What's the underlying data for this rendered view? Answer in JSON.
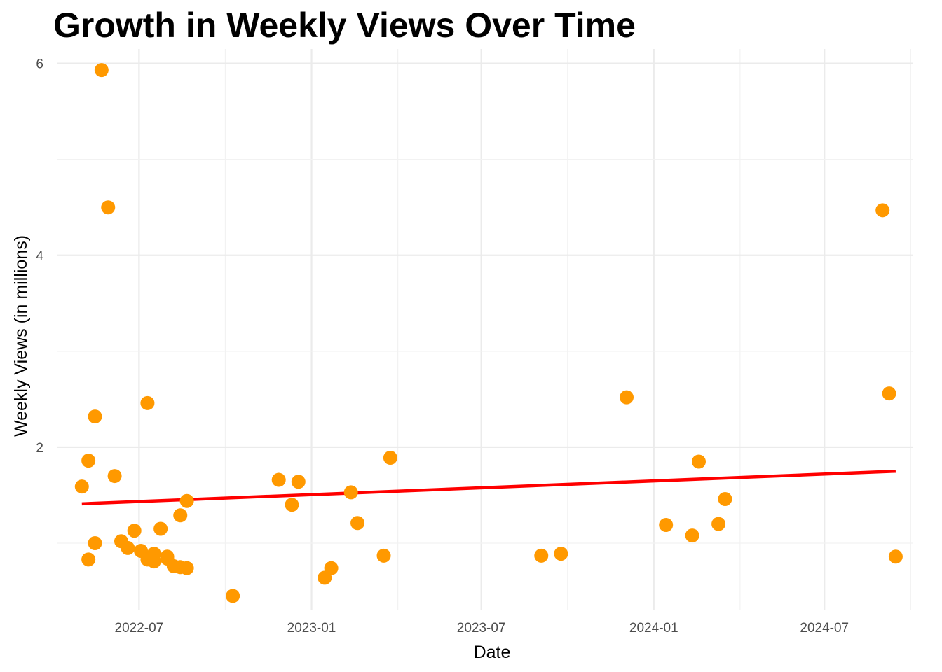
{
  "chart_data": {
    "type": "scatter",
    "title": "Growth in Weekly Views Over Time",
    "xlabel": "Date",
    "ylabel": "Weekly Views (in millions)",
    "x_ticks": [
      "2022-07",
      "2023-01",
      "2023-07",
      "2024-01",
      "2024-07"
    ],
    "y_ticks": [
      "2",
      "4",
      "6"
    ],
    "xlim": [
      "2022-04-05",
      "2024-10-03"
    ],
    "ylim": [
      0.3,
      6.15
    ],
    "grid": true,
    "colors": {
      "points": "#ff9900",
      "trend": "#ff0000"
    },
    "series": [
      {
        "type": "scatter",
        "x": [
          "2022-05-01",
          "2022-05-08",
          "2022-05-08",
          "2022-05-15",
          "2022-05-15",
          "2022-05-22",
          "2022-05-29",
          "2022-06-05",
          "2022-06-12",
          "2022-06-19",
          "2022-06-26",
          "2022-07-03",
          "2022-07-10",
          "2022-07-10",
          "2022-07-17",
          "2022-07-17",
          "2022-07-24",
          "2022-07-31",
          "2022-07-31",
          "2022-08-07",
          "2022-08-14",
          "2022-08-14",
          "2022-08-21",
          "2022-08-21",
          "2022-10-09",
          "2022-11-27",
          "2022-12-11",
          "2022-12-18",
          "2023-01-15",
          "2023-01-22",
          "2023-02-12",
          "2023-02-19",
          "2023-03-19",
          "2023-03-26",
          "2023-09-03",
          "2023-09-24",
          "2023-12-03",
          "2024-01-14",
          "2024-02-11",
          "2024-02-18",
          "2024-03-10",
          "2024-03-17",
          "2024-09-01",
          "2024-09-08",
          "2024-09-15"
        ],
        "y": [
          1.59,
          1.86,
          0.83,
          2.32,
          1.0,
          5.93,
          4.5,
          1.7,
          1.02,
          0.95,
          1.13,
          0.92,
          2.46,
          0.83,
          0.89,
          0.81,
          1.15,
          0.86,
          0.84,
          0.76,
          0.75,
          1.29,
          1.44,
          0.74,
          0.45,
          1.66,
          1.4,
          1.64,
          0.64,
          0.74,
          1.53,
          1.21,
          0.87,
          1.89,
          0.87,
          0.89,
          2.52,
          1.19,
          1.08,
          1.85,
          1.2,
          1.46,
          4.47,
          2.56,
          0.86
        ]
      },
      {
        "type": "line",
        "x": [
          "2022-05-01",
          "2024-09-15"
        ],
        "y": [
          1.41,
          1.75
        ]
      }
    ]
  }
}
